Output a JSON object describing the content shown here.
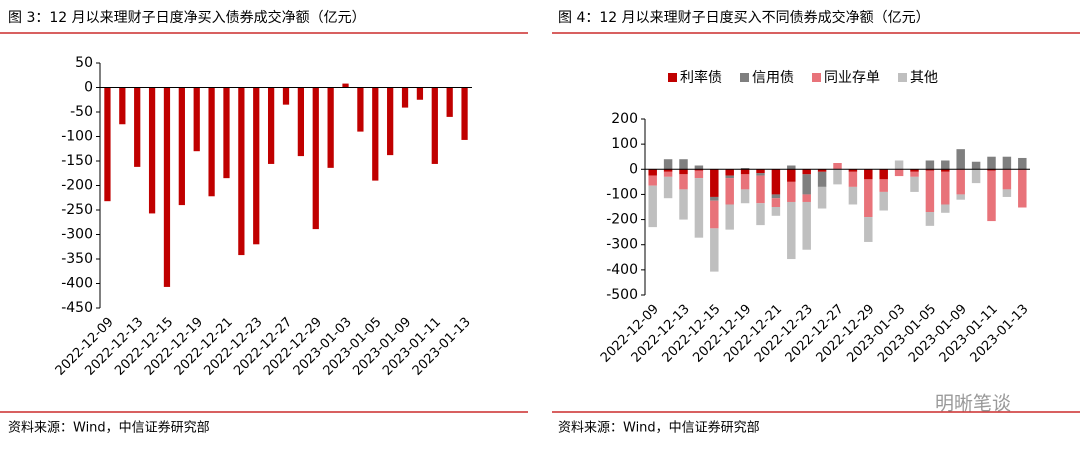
{
  "chart_data": [
    {
      "type": "bar",
      "title": "图 3：12 月以来理财子日度净买入债券成交净额（亿元）",
      "source": "资料来源：Wind，中信证券研究部",
      "categories": [
        "2022-12-09",
        null,
        "2022-12-13",
        null,
        "2022-12-15",
        null,
        "2022-12-19",
        null,
        "2022-12-21",
        null,
        "2022-12-23",
        null,
        "2022-12-27",
        null,
        "2022-12-29",
        null,
        "2023-01-03",
        null,
        "2023-01-05",
        null,
        "2023-01-09",
        null,
        "2023-01-11",
        null,
        "2023-01-13"
      ],
      "values": [
        -232,
        -75,
        -162,
        -257,
        -407,
        -240,
        -130,
        -222,
        -185,
        -342,
        -320,
        -156,
        -35,
        -140,
        -289,
        -164,
        8,
        -90,
        -190,
        -138,
        -41,
        -25,
        -156,
        -60,
        -107
      ],
      "color": "#c00000",
      "ylim": [
        -450,
        50
      ],
      "yticks": [
        -450,
        -400,
        -350,
        -300,
        -250,
        -200,
        -150,
        -100,
        -50,
        0,
        50
      ]
    },
    {
      "type": "stacked_bar",
      "title": "图 4：12 月以来理财子日度买入不同债券成交净额（亿元）",
      "source": "资料来源：Wind，中信证券研究部",
      "categories": [
        "2022-12-09",
        null,
        "2022-12-13",
        null,
        "2022-12-15",
        null,
        "2022-12-19",
        null,
        "2022-12-21",
        null,
        "2022-12-23",
        null,
        "2022-12-27",
        null,
        "2022-12-29",
        null,
        "2023-01-03",
        null,
        "2023-01-05",
        null,
        "2023-01-09",
        null,
        "2023-01-11",
        null,
        "2023-01-13"
      ],
      "series": [
        {
          "name": "利率债",
          "color": "#c00000",
          "values": [
            -25,
            -10,
            -20,
            -5,
            -110,
            -25,
            -20,
            -15,
            -100,
            -50,
            -20,
            -10,
            0,
            -10,
            -40,
            -40,
            0,
            -10,
            -5,
            -10,
            0,
            0,
            -5,
            0,
            0
          ]
        },
        {
          "name": "信用债",
          "color": "#7f7f7f",
          "values": [
            0,
            40,
            40,
            15,
            -15,
            -10,
            5,
            -10,
            -15,
            15,
            -80,
            -60,
            0,
            0,
            0,
            0,
            0,
            0,
            35,
            35,
            80,
            30,
            50,
            50,
            45
          ]
        },
        {
          "name": "同业存单",
          "color": "#e8737a",
          "values": [
            -40,
            -20,
            -60,
            -30,
            -110,
            -105,
            -60,
            -110,
            -35,
            -80,
            -30,
            0,
            25,
            -60,
            -150,
            -50,
            -27,
            -20,
            -165,
            -130,
            -100,
            0,
            -201,
            -80,
            -152
          ]
        },
        {
          "name": "其他",
          "color": "#bfbfbf",
          "values": [
            -165,
            -85,
            -120,
            -237,
            -172,
            -100,
            -55,
            -87,
            -35,
            -227,
            -190,
            -86,
            -60,
            -70,
            -99,
            -74,
            35,
            -60,
            -55,
            -33,
            -21,
            -55,
            0,
            -30,
            0
          ]
        }
      ],
      "ylim": [
        -500,
        200
      ],
      "yticks": [
        -500,
        -400,
        -300,
        -200,
        -100,
        0,
        100,
        200
      ]
    }
  ],
  "watermark": "明晰笔谈"
}
